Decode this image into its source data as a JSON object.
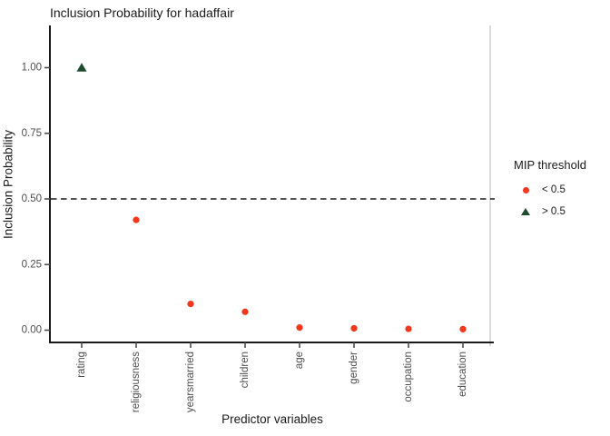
{
  "title": "Inclusion Probability for hadaffair",
  "axes": {
    "x_title": "Predictor variables",
    "y_title": "Inclusion Probability"
  },
  "legend": {
    "title": "MIP threshold",
    "items": [
      {
        "label": "< 0.5",
        "symbol": "circle",
        "color": "#f4361c"
      },
      {
        "label": "> 0.5",
        "symbol": "triangle",
        "color": "#1e4b2d"
      }
    ]
  },
  "colors": {
    "point_below": "#f4361c",
    "point_above": "#1e4b2d",
    "axis_line": "#1a1a1a",
    "axis_text": "#4d4d4d",
    "hline": "#1a1a1a",
    "panel_right_border": "#dcdcdc",
    "background": "#ffffff"
  },
  "chart_data": {
    "type": "scatter",
    "title": "Inclusion Probability for hadaffair",
    "xlabel": "Predictor variables",
    "ylabel": "Inclusion Probability",
    "categories": [
      "rating",
      "religiousness",
      "yearsmarried",
      "children",
      "age",
      "gender",
      "occupation",
      "education"
    ],
    "values": [
      1.0,
      0.42,
      0.1,
      0.07,
      0.01,
      0.007,
      0.005,
      0.004
    ],
    "threshold": 0.5,
    "hline": {
      "y": 0.5,
      "style": "dashed"
    },
    "y_ticks": [
      0.0,
      0.25,
      0.5,
      0.75,
      1.0
    ],
    "ylim": [
      0,
      1
    ],
    "grid": false,
    "legend_position": "right",
    "groups": {
      "below": {
        "label": "< 0.5",
        "symbol": "circle"
      },
      "above": {
        "label": "> 0.5",
        "symbol": "triangle"
      }
    }
  }
}
